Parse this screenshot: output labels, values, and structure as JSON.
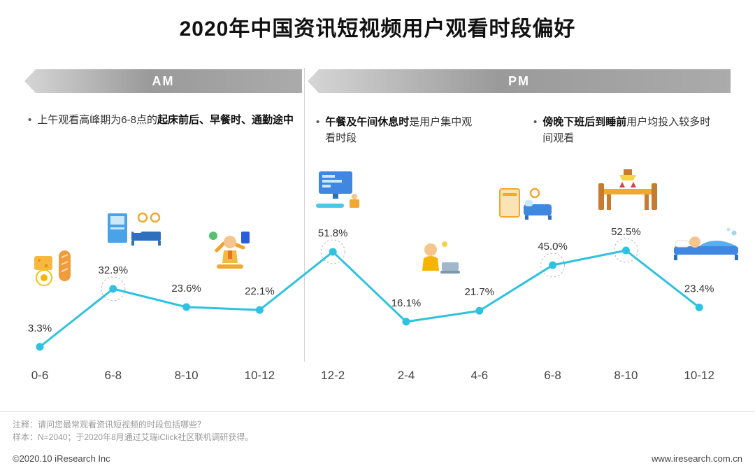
{
  "title": "2020年中国资讯短视频用户观看时段偏好",
  "banners": {
    "am": "AM",
    "pm": "PM"
  },
  "annotations": [
    {
      "pre": "上午观看高峰期为6-8点的",
      "bold": "起床前后、早餐时、通勤途中",
      "post": ""
    },
    {
      "pre": "",
      "bold": "午餐及午间休息时",
      "post": "是用户集中观看时段"
    },
    {
      "pre": "",
      "bold": "傍晚下班后到睡前",
      "post": "用户均投入较多时间观看"
    }
  ],
  "chart_data": {
    "type": "line",
    "title": "2020年中国资讯短视频用户观看时段偏好",
    "categories": [
      "0-6",
      "6-8",
      "8-10",
      "10-12",
      "12-2",
      "2-4",
      "4-6",
      "6-8",
      "8-10",
      "10-12"
    ],
    "values": [
      3.3,
      32.9,
      23.6,
      22.1,
      51.8,
      16.1,
      21.7,
      45.0,
      52.5,
      23.4
    ],
    "value_suffix": "%",
    "highlighted_indices": [
      1,
      4,
      7,
      8
    ],
    "line_color": "#2ec2e0",
    "xlabel": "",
    "ylabel": "",
    "ylim": [
      0,
      60
    ],
    "grid": false,
    "legend_position": "none",
    "sections": [
      {
        "label": "AM",
        "categories": [
          "0-6",
          "6-8",
          "8-10",
          "10-12"
        ]
      },
      {
        "label": "PM",
        "categories": [
          "12-2",
          "2-4",
          "4-6",
          "6-8",
          "8-10",
          "10-12"
        ]
      }
    ]
  },
  "icons": [
    "breakfast-icon",
    "bedroom-wakeup-icon",
    "commute-phone-icon",
    "desk-computer-icon",
    "office-worker-icon",
    "livingroom-sofa-icon",
    "dinner-table-icon",
    "sleeping-bed-icon"
  ],
  "footer": {
    "note1": "注释：请问您最常观看资讯短视频的时段包括哪些？",
    "note2": "样本：N=2040；于2020年8月通过艾瑞iClick社区联机调研获得。",
    "copyright": "©2020.10 iResearch Inc",
    "website": "www.iresearch.com.cn"
  }
}
